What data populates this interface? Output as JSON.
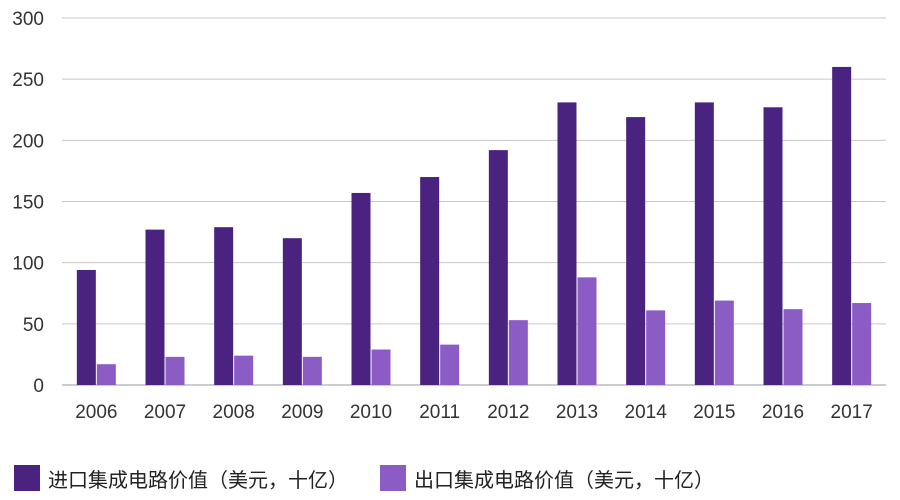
{
  "chart_data": {
    "type": "bar",
    "title": "",
    "xlabel": "",
    "ylabel": "",
    "categories": [
      "2006",
      "2007",
      "2008",
      "2009",
      "2010",
      "2011",
      "2012",
      "2013",
      "2014",
      "2015",
      "2016",
      "2017"
    ],
    "series": [
      {
        "name": "进口集成电路价值（美元，十亿）",
        "color": "#4a2280",
        "values": [
          94,
          127,
          129,
          120,
          157,
          170,
          192,
          231,
          219,
          231,
          227,
          260
        ]
      },
      {
        "name": "出口集成电路价值（美元，十亿）",
        "color": "#8a5cc4",
        "values": [
          17,
          23,
          24,
          23,
          29,
          33,
          53,
          88,
          61,
          69,
          62,
          67
        ]
      }
    ],
    "ylim": [
      0,
      300
    ],
    "yticks": [
      0,
      50,
      100,
      150,
      200,
      250,
      300
    ],
    "grid": true,
    "legend": "bottom"
  }
}
